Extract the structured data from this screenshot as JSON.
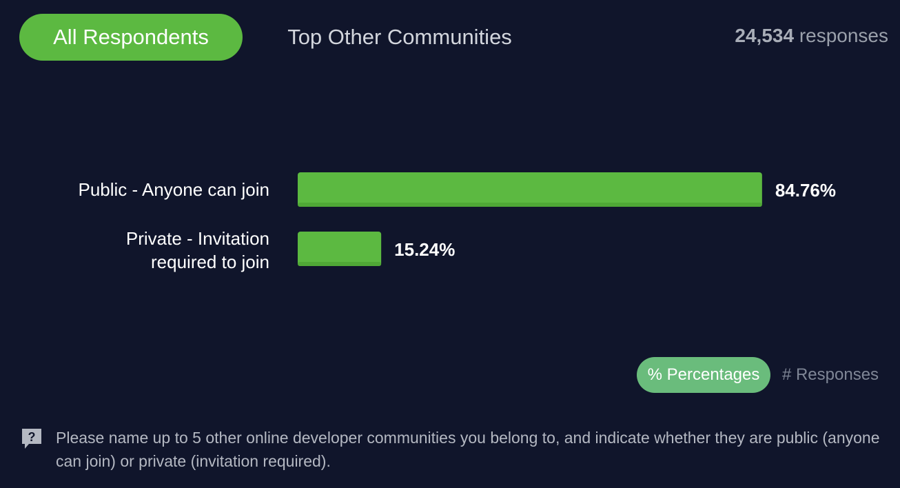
{
  "tabs": {
    "active_label": "All Respondents",
    "inactive_label": "Top Other Communities"
  },
  "responses": {
    "count": "24,534",
    "unit": "responses"
  },
  "chart_data": {
    "type": "bar",
    "orientation": "horizontal",
    "categories": [
      "Public - Anyone can join",
      "Private - Invitation required to join"
    ],
    "category_lines": [
      [
        "Public - Anyone can join"
      ],
      [
        "Private - Invitation",
        "required to join"
      ]
    ],
    "values": [
      84.76,
      15.24
    ],
    "value_labels": [
      "84.76%",
      "15.24%"
    ],
    "xlim": [
      0,
      100
    ],
    "title": "",
    "xlabel": "",
    "ylabel": "",
    "grid": false,
    "bar_color": "#5cb941"
  },
  "toggle": {
    "percent_label": "% Percentages",
    "responses_label": "# Responses"
  },
  "question": "Please name up to 5 other online developer communities you belong to, and indicate whether they are public (anyone can join) or private (invitation required).",
  "colors": {
    "background": "#10152b",
    "accent": "#5cb941",
    "toggle_active": "#6abc7c"
  }
}
